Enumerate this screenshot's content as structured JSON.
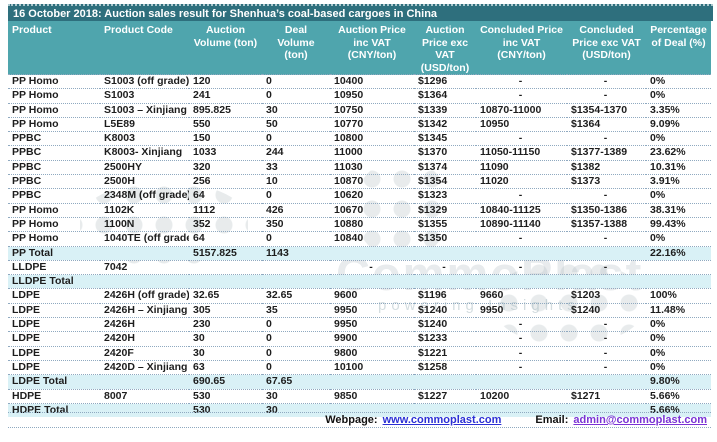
{
  "title": "16 October 2018: Auction sales result for Shenhua’s coal-based cargoes in China",
  "colors": {
    "title_bar": "#2e6f7d",
    "header_bg": "#4fa5ad",
    "total_row_bg": "#d9f1f6",
    "row_border": "#8fa9c0",
    "link_webpage": "#2b2fd4",
    "link_email": "#7a33d4"
  },
  "table": {
    "columns": [
      "Product",
      "Product Code",
      "Auction Volume (ton)",
      "Deal Volume (ton)",
      "Auction Price inc VAT (CNY/ton)",
      "Auction Price exc VAT (USD/ton)",
      "Concluded Price inc VAT (CNY/ton)",
      "Concluded Price exc VAT (USD/ton)",
      "Percentage of Deal (%)"
    ],
    "rows": [
      {
        "type": "data",
        "cells": [
          "PP Homo",
          "S1003 (off grade)",
          "120",
          "0",
          "10400",
          "$1296",
          "-",
          "-",
          "0%"
        ]
      },
      {
        "type": "data",
        "cells": [
          "PP Homo",
          "S1003",
          "241",
          "0",
          "10950",
          "$1364",
          "-",
          "-",
          "0%"
        ]
      },
      {
        "type": "data",
        "cells": [
          "PP Homo",
          "S1003 – Xinjiang",
          "895.825",
          "30",
          "10750",
          "$1339",
          "10870-11000",
          "$1354-1370",
          "3.35%"
        ]
      },
      {
        "type": "data",
        "cells": [
          "PP Homo",
          "L5E89",
          "550",
          "50",
          "10770",
          "$1342",
          "10950",
          "$1364",
          "9.09%"
        ]
      },
      {
        "type": "data",
        "cells": [
          "PPBC",
          "K8003",
          "150",
          "0",
          "10800",
          "$1345",
          "-",
          "-",
          "0%"
        ]
      },
      {
        "type": "data",
        "cells": [
          "PPBC",
          "K8003- Xinjiang",
          "1033",
          "244",
          "11000",
          "$1370",
          "11050-11150",
          "$1377-1389",
          "23.62%"
        ]
      },
      {
        "type": "data",
        "cells": [
          "PPBC",
          "2500HY",
          "320",
          "33",
          "11030",
          "$1374",
          "11090",
          "$1382",
          "10.31%"
        ]
      },
      {
        "type": "data",
        "cells": [
          "PPBC",
          "2500H",
          "256",
          "10",
          "10870",
          "$1354",
          "11020",
          "$1373",
          "3.91%"
        ]
      },
      {
        "type": "data",
        "cells": [
          "PPBC",
          "2348M (off grade)",
          "64",
          "0",
          "10620",
          "$1323",
          "-",
          "-",
          "0%"
        ]
      },
      {
        "type": "data",
        "cells": [
          "PP Homo",
          "1102K",
          "1112",
          "426",
          "10670",
          "$1329",
          "10840-11125",
          "$1350-1386",
          "38.31%"
        ]
      },
      {
        "type": "data",
        "cells": [
          "PP Homo",
          "1100N",
          "352",
          "350",
          "10880",
          "$1355",
          "10890-11140",
          "$1357-1388",
          "99.43%"
        ]
      },
      {
        "type": "data",
        "cells": [
          "PP Homo",
          "1040TE (off grade)",
          "64",
          "0",
          "10840",
          "$1350",
          "-",
          "-",
          "0%"
        ]
      },
      {
        "type": "total",
        "cells": [
          "PP Total",
          "",
          "5157.825",
          "1143",
          "",
          "",
          "",
          "",
          "22.16%"
        ]
      },
      {
        "type": "data",
        "cells": [
          "LLDPE",
          "7042",
          "",
          "",
          "-",
          "-",
          "-",
          "-",
          ""
        ]
      },
      {
        "type": "total",
        "cells": [
          "LLDPE Total",
          "",
          "",
          "",
          "",
          "",
          "",
          "",
          ""
        ]
      },
      {
        "type": "data",
        "cells": [
          "LDPE",
          "2426H (off grade)",
          "32.65",
          "32.65",
          "9600",
          "$1196",
          "9660",
          "$1203",
          "100%"
        ]
      },
      {
        "type": "data",
        "cells": [
          "LDPE",
          "2426H – Xinjiang",
          "305",
          "35",
          "9950",
          "$1240",
          "9950",
          "$1240",
          "11.48%"
        ]
      },
      {
        "type": "data",
        "cells": [
          "LDPE",
          "2426H",
          "230",
          "0",
          "9950",
          "$1240",
          "-",
          "-",
          "0%"
        ]
      },
      {
        "type": "data",
        "cells": [
          "LDPE",
          "2420H",
          "30",
          "0",
          "9900",
          "$1233",
          "-",
          "-",
          "0%"
        ]
      },
      {
        "type": "data",
        "cells": [
          "LDPE",
          "2420F",
          "30",
          "0",
          "9800",
          "$1221",
          "-",
          "-",
          "0%"
        ]
      },
      {
        "type": "data",
        "cells": [
          "LDPE",
          "2420D – Xinjiang",
          "63",
          "0",
          "10100",
          "$1258",
          "-",
          "-",
          "0%"
        ]
      },
      {
        "type": "total",
        "cells": [
          "LDPE Total",
          "",
          "690.65",
          "67.65",
          "",
          "",
          "",
          "",
          "9.80%"
        ]
      },
      {
        "type": "data",
        "cells": [
          "HDPE",
          "8007",
          "530",
          "30",
          "9850",
          "$1227",
          "10200",
          "$1271",
          "5.66%"
        ]
      },
      {
        "type": "total",
        "cells": [
          "HDPE Total",
          "",
          "530",
          "30",
          "",
          "",
          "",
          "",
          "5.66%"
        ]
      }
    ]
  },
  "footer": {
    "webpage_label": "Webpage:",
    "webpage_link": "www.commoplast.com",
    "email_label": "Email:",
    "email_link": "admin@commoplast.com"
  },
  "watermark": {
    "line1": "CommoPlast",
    "line2": "powering Insights"
  }
}
